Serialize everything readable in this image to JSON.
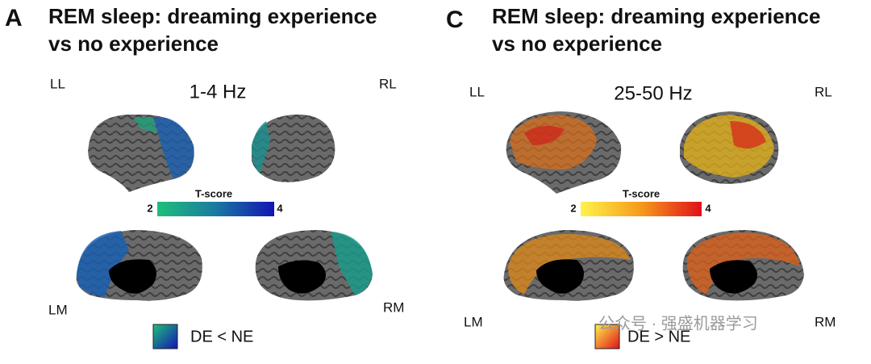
{
  "panels": [
    {
      "letter": "A",
      "title": [
        "REM sleep: dreaming experience",
        "vs no experience"
      ],
      "frequency": "1-4 Hz",
      "views": [
        "LL",
        "RL",
        "LM",
        "RM"
      ],
      "colorbar": {
        "label": "T-score",
        "ticks": [
          2,
          4
        ]
      },
      "legend": "DE < NE"
    },
    {
      "letter": "C",
      "title": [
        "REM sleep: dreaming experience",
        "vs no experience"
      ],
      "frequency": "25-50 Hz",
      "views": [
        "LL",
        "RL",
        "LM",
        "RM"
      ],
      "colorbar": {
        "label": "T-score",
        "ticks": [
          2,
          4
        ]
      },
      "legend": "DE > NE"
    }
  ],
  "watermark": "公众号 · 强盛机器学习"
}
